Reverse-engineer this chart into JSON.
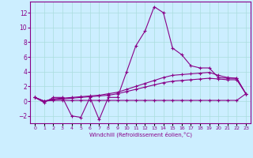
{
  "xlabel": "Windchill (Refroidissement éolien,°C)",
  "x": [
    0,
    1,
    2,
    3,
    4,
    5,
    6,
    7,
    8,
    9,
    10,
    11,
    12,
    13,
    14,
    15,
    16,
    17,
    18,
    19,
    20,
    21,
    22,
    23
  ],
  "line1": [
    0.5,
    -0.2,
    0.5,
    0.5,
    -2.0,
    -2.2,
    0.5,
    -2.5,
    0.5,
    0.5,
    4.0,
    7.5,
    9.5,
    12.8,
    12.0,
    7.2,
    6.3,
    4.8,
    4.5,
    4.5,
    3.2,
    3.1,
    3.1,
    1.0
  ],
  "line2": [
    0.5,
    0.0,
    0.3,
    0.4,
    0.5,
    0.6,
    0.7,
    0.8,
    1.0,
    1.2,
    1.6,
    2.0,
    2.4,
    2.8,
    3.2,
    3.5,
    3.6,
    3.7,
    3.8,
    3.9,
    3.5,
    3.2,
    3.1,
    1.0
  ],
  "line3": [
    0.5,
    0.0,
    0.2,
    0.3,
    0.4,
    0.5,
    0.6,
    0.7,
    0.8,
    1.0,
    1.3,
    1.6,
    1.9,
    2.2,
    2.5,
    2.7,
    2.8,
    2.9,
    3.0,
    3.1,
    3.0,
    2.9,
    2.9,
    1.0
  ],
  "line4": [
    0.5,
    0.0,
    0.1,
    0.1,
    0.1,
    0.1,
    0.1,
    0.1,
    0.1,
    0.1,
    0.1,
    0.1,
    0.1,
    0.1,
    0.1,
    0.1,
    0.1,
    0.1,
    0.1,
    0.1,
    0.1,
    0.1,
    0.1,
    1.0
  ],
  "line_color": "#880088",
  "bg_color": "#cceeff",
  "grid_color": "#aadddd",
  "ylim": [
    -3,
    13.5
  ],
  "yticks": [
    -2,
    0,
    2,
    4,
    6,
    8,
    10,
    12
  ],
  "xlim": [
    -0.5,
    23.5
  ]
}
